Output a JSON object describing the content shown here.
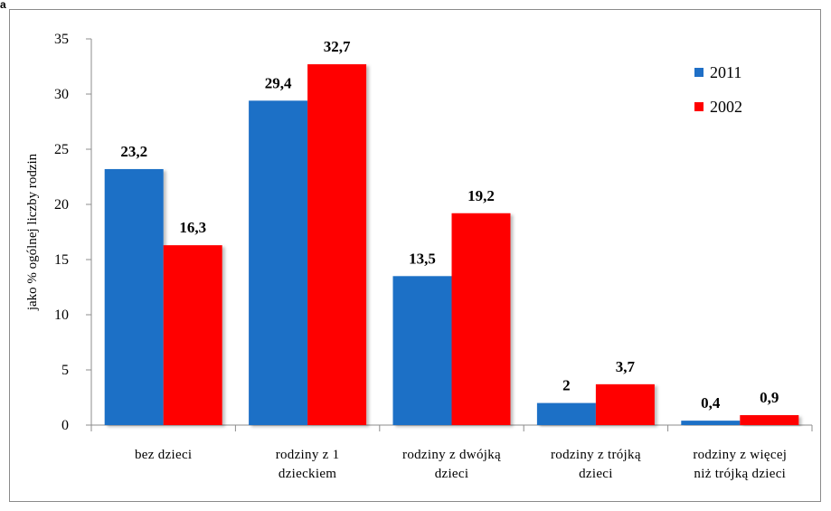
{
  "corner_mark": "a",
  "chart_data": {
    "type": "bar",
    "title": "",
    "xlabel": "",
    "ylabel": "jako % ogólnej liczby rodzin",
    "ylim": [
      0,
      35
    ],
    "yticks": [
      0,
      5,
      10,
      15,
      20,
      25,
      30,
      35
    ],
    "grid": false,
    "legend_position": "top-right",
    "categories": [
      [
        "bez dzieci"
      ],
      [
        "rodziny z 1",
        "dzieckiem"
      ],
      [
        "rodziny z dwójką",
        "dzieci"
      ],
      [
        "rodziny z trójką",
        "dzieci"
      ],
      [
        "rodziny z więcej",
        "niż trójką dzieci"
      ]
    ],
    "series": [
      {
        "name": "2011",
        "color": "#1f6fc6",
        "values": [
          23.2,
          29.4,
          13.5,
          2,
          0.4
        ],
        "labels": [
          "23,2",
          "29,4",
          "13,5",
          "2",
          "0,4"
        ]
      },
      {
        "name": "2002",
        "color": "#ff0000",
        "values": [
          16.3,
          32.7,
          19.2,
          3.7,
          0.9
        ],
        "labels": [
          "16,3",
          "32,7",
          "19,2",
          "3,7",
          "0,9"
        ]
      }
    ]
  }
}
